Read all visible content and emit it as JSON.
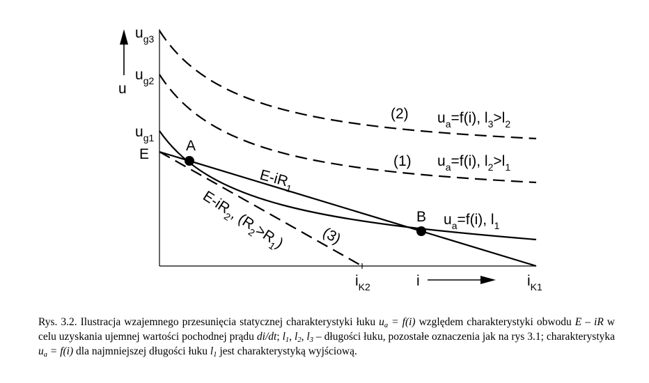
{
  "diagram": {
    "axis_u": "u",
    "axis_i": "i",
    "tick_labels": {
      "ug3": {
        "main": "u",
        "sub": "g3"
      },
      "ug2": {
        "main": "u",
        "sub": "g2"
      },
      "ug1": {
        "main": "u",
        "sub": "g1"
      },
      "E": "E",
      "iK2": {
        "main": "i",
        "sub": "K2"
      },
      "iK1": {
        "main": "i",
        "sub": "K1"
      }
    },
    "points": {
      "A": "A",
      "B": "B"
    },
    "labels": {
      "curve2_num": "(2)",
      "curve2_a": "u",
      "curve2_sub": "a",
      "curve2_b": "=f(i), l",
      "curve2_sub3": "3",
      "curve2_c": ">l",
      "curve2_sub2": "2",
      "curve1_num": "(1)",
      "curve1_a": "u",
      "curve1_sub": "a",
      "curve1_b": "=f(i), l",
      "curve1_sub2": "2",
      "curve1_c": ">l",
      "curve1_sub1": "1",
      "curve0_a": "u",
      "curve0_sub": "a",
      "curve0_b": "=f(i), l",
      "curve0_sub1": "1",
      "line1_a": "E-iR",
      "line1_sub": "1",
      "line2_a": "E-iR",
      "line2_sub": "2",
      "line2_b": ", (R",
      "line2_sub2": "2",
      "line2_c": ">R",
      "line2_sub1": "1",
      "line2_d": ")",
      "curve3_num": "(3)"
    }
  },
  "caption": {
    "p1": "Rys. 3.2. Ilustracja wzajemnego przesunięcia statycznej charakterystyki łuku ",
    "u_a": "u",
    "u_a_sub": "a",
    "eq_fi": " = f(i)",
    "p2": " względem charakterystyki obwodu ",
    "E_iR": "E – iR",
    "p3": " w celu uzyskania ujemnej wartości pochodnej prądu ",
    "didt": "di/dt",
    "p4": "; ",
    "l1": "l",
    "l1_sub": "1",
    "sep1": ", ",
    "l2": "l",
    "l2_sub": "2",
    "sep2": ", ",
    "l3": "l",
    "l3_sub": "3",
    "p5": " – długości łuku, pozostałe oznaczenia jak na rys 3.1; charakterystyka ",
    "u_a2": "u",
    "u_a2_sub": "a",
    "eq_fi2": " = f(i)",
    "p6": " dla najmniejszej długości łuku ",
    "l1b": "l",
    "l1b_sub": "1",
    "p7": " jest charakterystyką wyjściową."
  }
}
